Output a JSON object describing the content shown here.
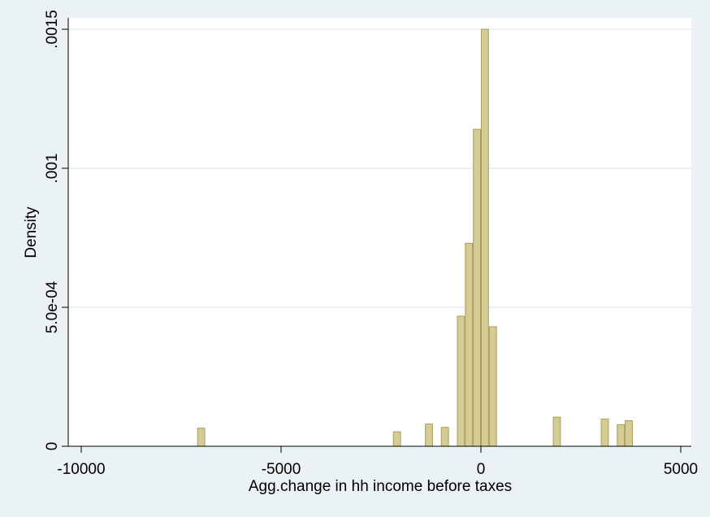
{
  "chart_data": {
    "type": "bar",
    "subtype": "histogram",
    "title": "",
    "xlabel": "Agg.change in hh income before taxes",
    "ylabel": "Density",
    "xlim": [
      -10000,
      5000
    ],
    "ylim": [
      0,
      0.0015
    ],
    "x_ticks": [
      {
        "value": -10000,
        "label": "-10000"
      },
      {
        "value": -5000,
        "label": "-5000"
      },
      {
        "value": 0,
        "label": "0"
      },
      {
        "value": 5000,
        "label": "5000"
      }
    ],
    "y_ticks": [
      {
        "value": 0,
        "label": "0"
      },
      {
        "value": 0.0005,
        "label": "5.0e-04"
      },
      {
        "value": 0.001,
        "label": ".001"
      },
      {
        "value": 0.0015,
        "label": ".0015"
      }
    ],
    "grid": true,
    "bin_width": 200,
    "bins": [
      {
        "x0": -7100,
        "x1": -6900,
        "density": 6.5e-05
      },
      {
        "x0": -2200,
        "x1": -2000,
        "density": 5.2e-05
      },
      {
        "x0": -1400,
        "x1": -1200,
        "density": 8e-05
      },
      {
        "x0": -1000,
        "x1": -800,
        "density": 6.8e-05
      },
      {
        "x0": -600,
        "x1": -400,
        "density": 0.000468
      },
      {
        "x0": -400,
        "x1": -200,
        "density": 0.00073
      },
      {
        "x0": -200,
        "x1": 0,
        "density": 0.00114
      },
      {
        "x0": 0,
        "x1": 200,
        "density": 0.0015
      },
      {
        "x0": 200,
        "x1": 400,
        "density": 0.00043
      },
      {
        "x0": 1800,
        "x1": 2000,
        "density": 0.000105
      },
      {
        "x0": 3000,
        "x1": 3200,
        "density": 9.8e-05
      },
      {
        "x0": 3400,
        "x1": 3600,
        "density": 7.8e-05
      },
      {
        "x0": 3600,
        "x1": 3800,
        "density": 9.2e-05
      }
    ],
    "colors": {
      "bar_fill": "#d5cb94",
      "bar_stroke": "#a89d5c",
      "plot_background": "#ffffff",
      "outer_background": "#eaf2f3",
      "grid": "#eaf2f3",
      "axis": "#000000"
    }
  }
}
